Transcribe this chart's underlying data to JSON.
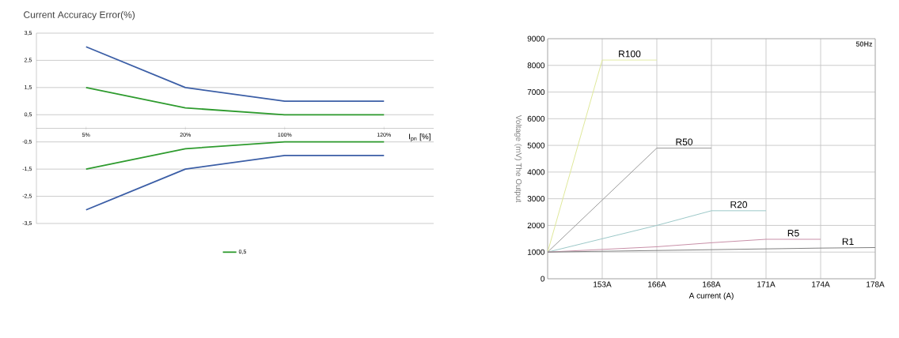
{
  "chart_data": [
    {
      "type": "line",
      "title": "Current Accuracy Error(%)",
      "xlabel": "I$_{pn}$ [%]",
      "categories": [
        "5%",
        "20%",
        "100%",
        "120%"
      ],
      "series": [
        {
          "color": "#3b5ea6",
          "values": [
            3,
            1.5,
            1,
            1
          ]
        },
        {
          "color": "#3b5ea6",
          "values": [
            -3,
            -1.5,
            -1,
            -1
          ]
        },
        {
          "name": "0,5",
          "color": "#2e9b2e",
          "values": [
            1.5,
            0.75,
            0.5,
            0.5
          ]
        },
        {
          "color": "#2e9b2e",
          "values": [
            -1.5,
            -0.75,
            -0.5,
            -0.5
          ]
        }
      ],
      "ylim": [
        -3.5,
        3.5
      ],
      "yticks": [
        {
          "value": 3.5,
          "label": "3,5"
        },
        {
          "value": 2.5,
          "label": "2,5"
        },
        {
          "value": 1.5,
          "label": "1,5"
        },
        {
          "value": 0.5,
          "label": "0,5"
        },
        {
          "value": -0.5,
          "label": "-0,5"
        },
        {
          "value": -1.5,
          "label": "-1,5"
        },
        {
          "value": -2.5,
          "label": "-2,5"
        },
        {
          "value": -3.5,
          "label": "-3,5"
        }
      ],
      "grid": "y",
      "legend": "bottom"
    },
    {
      "type": "line",
      "xlabel": "A current (A)",
      "ylabel": "Voltage (mV) The Output",
      "annotations": [
        "50Hz"
      ],
      "categories": [
        null,
        "153A",
        "166A",
        "168A",
        "171A",
        "174A",
        "178A"
      ],
      "series": [
        {
          "name": "R100",
          "color": "#dfe89a",
          "values": [
            1000,
            8200,
            8200,
            null,
            null,
            null,
            null
          ]
        },
        {
          "name": "R50",
          "color": "#9a9a9a",
          "values": [
            1000,
            2950,
            4900,
            4900,
            null,
            null,
            null
          ]
        },
        {
          "name": "R20",
          "color": "#9cc8c8",
          "values": [
            1000,
            1500,
            2000,
            2550,
            2550,
            null,
            null
          ]
        },
        {
          "name": "R5",
          "color": "#c890a8",
          "values": [
            1000,
            1100,
            1200,
            1350,
            1480,
            1480,
            null
          ]
        },
        {
          "name": "R1",
          "color": "#808080",
          "values": [
            1000,
            1030,
            1060,
            1090,
            1120,
            1150,
            1170
          ]
        }
      ],
      "ylim": [
        0,
        9000
      ],
      "yticks": [
        0,
        1000,
        2000,
        3000,
        4000,
        5000,
        6000,
        7000,
        8000,
        9000
      ],
      "grid": true
    }
  ]
}
